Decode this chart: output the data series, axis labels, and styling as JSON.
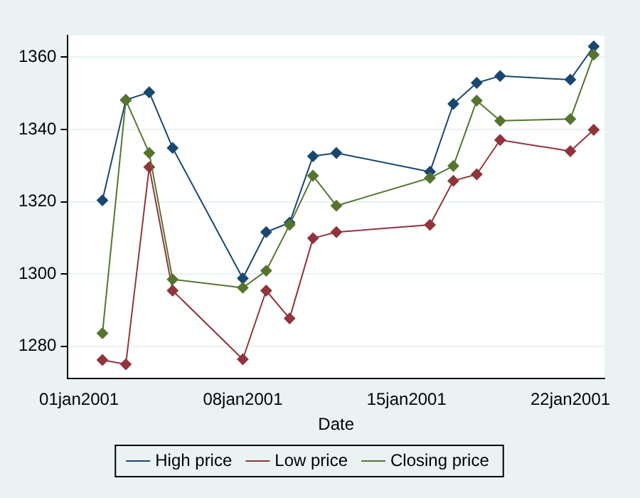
{
  "chart_data": {
    "type": "line",
    "xlabel": "Date",
    "x": [
      "2001-01-02",
      "2001-01-03",
      "2001-01-04",
      "2001-01-05",
      "2001-01-08",
      "2001-01-09",
      "2001-01-10",
      "2001-01-11",
      "2001-01-12",
      "2001-01-16",
      "2001-01-17",
      "2001-01-18",
      "2001-01-19",
      "2001-01-22",
      "2001-01-23"
    ],
    "series": [
      {
        "name": "High price",
        "color": "#1a476f",
        "values": [
          1320.4,
          1348.2,
          1350.3,
          1334.9,
          1298.8,
          1311.6,
          1314.2,
          1332.6,
          1333.5,
          1328.3,
          1347.1,
          1352.9,
          1354.8,
          1353.8,
          1363.0
        ]
      },
      {
        "name": "Low price",
        "color": "#90353b",
        "values": [
          1276.2,
          1275.0,
          1329.6,
          1295.4,
          1276.4,
          1295.4,
          1287.7,
          1309.9,
          1311.6,
          1313.6,
          1325.8,
          1327.6,
          1337.1,
          1334.0,
          1339.9
        ]
      },
      {
        "name": "Closing price",
        "color": "#55752f",
        "values": [
          1283.6,
          1348.1,
          1333.5,
          1298.5,
          1296.2,
          1300.9,
          1313.6,
          1327.2,
          1318.9,
          1326.6,
          1329.9,
          1348.0,
          1342.4,
          1342.9,
          1360.7
        ]
      }
    ],
    "xlim": [
      "2000-12-31T12:30",
      "2001-01-23T11:00"
    ],
    "xticks": [
      {
        "value": "2001-01-01",
        "label": "01jan2001"
      },
      {
        "value": "2001-01-08",
        "label": "08jan2001"
      },
      {
        "value": "2001-01-15",
        "label": "15jan2001"
      },
      {
        "value": "2001-01-22",
        "label": "22jan2001"
      }
    ],
    "ylim": [
      1271,
      1366
    ],
    "yticks": [
      1280,
      1300,
      1320,
      1340,
      1360
    ],
    "grid": "y",
    "legend": "bottom",
    "marker": "diamond",
    "line_style": "solid"
  }
}
